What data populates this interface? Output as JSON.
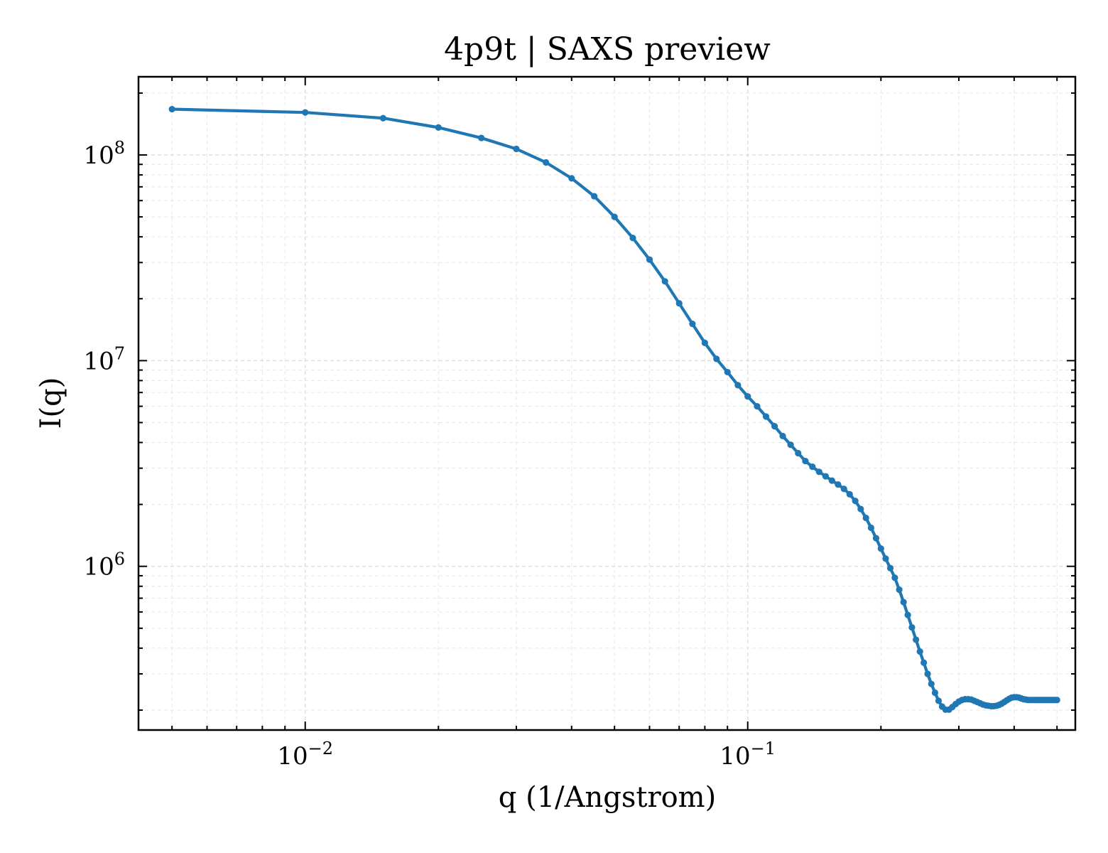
{
  "chart_data": {
    "type": "line",
    "title": "4p9t | SAXS preview",
    "xlabel": "q (1/Angstrom)",
    "ylabel": "I(q)",
    "xscale": "log",
    "yscale": "log",
    "xlim": [
      0.0042,
      0.55
    ],
    "ylim": [
      160000,
      240000000
    ],
    "grid": true,
    "x_ticks": [
      {
        "base": "10",
        "exp": "−2",
        "value": 0.01
      },
      {
        "base": "10",
        "exp": "−1",
        "value": 0.1
      }
    ],
    "y_ticks": [
      {
        "base": "10",
        "exp": "6",
        "value": 1000000
      },
      {
        "base": "10",
        "exp": "7",
        "value": 10000000
      },
      {
        "base": "10",
        "exp": "8",
        "value": 100000000
      }
    ],
    "colors": {
      "series": "#1f77b4",
      "grid": "#d9d9d9",
      "axes": "#000000"
    },
    "series": [
      {
        "x": [
          0.005,
          0.01,
          0.015,
          0.02,
          0.025,
          0.03,
          0.035,
          0.04,
          0.045,
          0.05,
          0.055,
          0.06,
          0.065,
          0.07,
          0.075,
          0.08,
          0.085,
          0.09,
          0.095,
          0.1,
          0.105,
          0.11,
          0.115,
          0.12,
          0.125,
          0.13,
          0.135,
          0.14,
          0.145,
          0.15,
          0.155,
          0.16,
          0.165,
          0.17,
          0.175,
          0.18,
          0.185,
          0.19,
          0.195,
          0.2,
          0.205,
          0.21,
          0.215,
          0.22,
          0.225,
          0.23,
          0.235,
          0.24,
          0.245,
          0.25,
          0.255,
          0.26,
          0.265,
          0.27,
          0.275,
          0.28,
          0.285,
          0.29,
          0.295,
          0.3,
          0.305,
          0.31,
          0.315,
          0.32,
          0.325,
          0.33,
          0.335,
          0.34,
          0.345,
          0.35,
          0.355,
          0.36,
          0.365,
          0.37,
          0.375,
          0.38,
          0.385,
          0.39,
          0.395,
          0.4,
          0.405,
          0.41,
          0.415,
          0.42,
          0.425,
          0.43,
          0.435,
          0.44,
          0.445,
          0.45,
          0.455,
          0.46,
          0.465,
          0.47,
          0.475,
          0.48,
          0.485,
          0.49,
          0.495,
          0.5
        ],
        "y": [
          167000000,
          161000000,
          151000000,
          136000000,
          121000000,
          107000000,
          92000000,
          77000000,
          63000000,
          50000000,
          39500000,
          31000000,
          24300000,
          19000000,
          15100000,
          12200000,
          10200000,
          8800000,
          7600000,
          6700000,
          6000000,
          5350000,
          4800000,
          4300000,
          3900000,
          3550000,
          3250000,
          3050000,
          2880000,
          2740000,
          2610000,
          2500000,
          2380000,
          2240000,
          2080000,
          1900000,
          1720000,
          1540000,
          1370000,
          1220000,
          1090000,
          980000,
          880000,
          770000,
          670000,
          580000,
          505000,
          440000,
          385000,
          340000,
          300000,
          268000,
          243000,
          222000,
          208000,
          201000,
          201000,
          207000,
          214000,
          220000,
          224000,
          226000,
          226000,
          225000,
          222000,
          219000,
          216000,
          213000,
          211000,
          210000,
          209000,
          209000,
          210000,
          212000,
          215000,
          219000,
          223000,
          227000,
          230000,
          231000,
          231000,
          230000,
          228000,
          226000,
          225000,
          224000,
          224000,
          224000,
          224000,
          224000,
          224000,
          224000,
          224000,
          224000,
          224000,
          224000,
          224000,
          224000,
          224000,
          224000
        ]
      }
    ]
  }
}
